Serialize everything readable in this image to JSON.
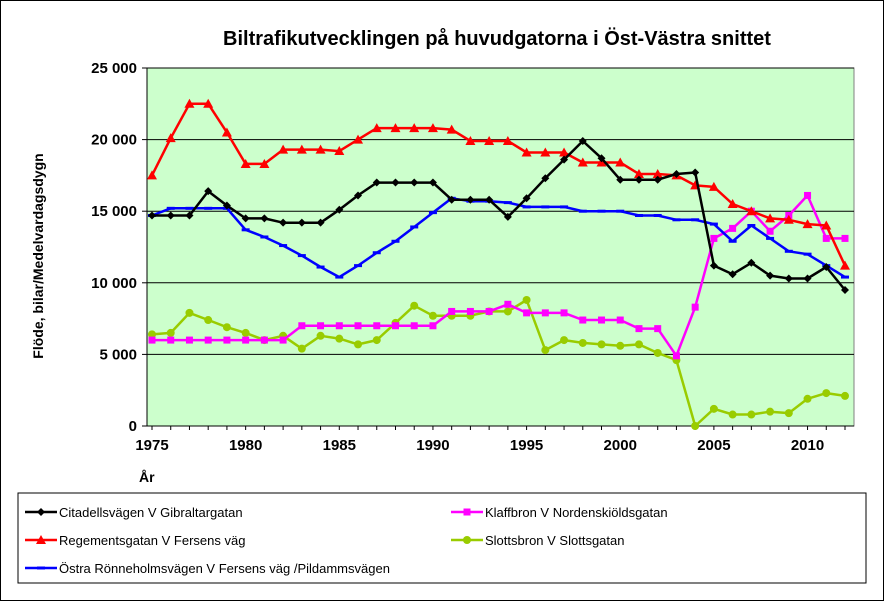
{
  "chart_data": {
    "type": "line",
    "title": "Biltrafikutvecklingen på huvudgatorna i Öst-Västra snittet",
    "xlabel": "År",
    "ylabel": "Flöde, bilar/Medelvardagsdygn",
    "xlim": [
      1975,
      2012
    ],
    "ylim": [
      0,
      25000
    ],
    "x_ticks": [
      1975,
      1980,
      1985,
      1990,
      1995,
      2000,
      2005,
      2010
    ],
    "y_ticks": [
      0,
      5000,
      10000,
      15000,
      20000,
      25000
    ],
    "x_tick_labels": [
      "1975",
      "1980",
      "1985",
      "1990",
      "1995",
      "2000",
      "2005",
      "2010"
    ],
    "y_tick_labels": [
      "0",
      "5 000",
      "10 000",
      "15 000",
      "20 000",
      "25 000"
    ],
    "grid": "horizontal",
    "plot_background": "#ccffcc",
    "legend_position": "bottom",
    "x": [
      1975,
      1976,
      1977,
      1978,
      1979,
      1980,
      1981,
      1982,
      1983,
      1984,
      1985,
      1986,
      1987,
      1988,
      1989,
      1990,
      1991,
      1992,
      1993,
      1994,
      1995,
      1996,
      1997,
      1998,
      1999,
      2000,
      2001,
      2002,
      2003,
      2004,
      2005,
      2006,
      2007,
      2008,
      2009,
      2010,
      2011,
      2012
    ],
    "series": [
      {
        "name": "Citadellsvägen  V Gibraltargatan",
        "color": "#000000",
        "marker": "diamond",
        "values": [
          14700,
          14700,
          14700,
          16400,
          15400,
          14500,
          14500,
          14200,
          14200,
          14200,
          15100,
          16100,
          17000,
          17000,
          17000,
          17000,
          15800,
          15800,
          15800,
          14600,
          15900,
          17300,
          18600,
          19900,
          18700,
          17200,
          17200,
          17200,
          17600,
          17700,
          11200,
          10600,
          11400,
          10500,
          10300,
          10300,
          11100,
          9500
        ]
      },
      {
        "name": "Regementsgatan V Fersens väg",
        "color": "#ff0000",
        "marker": "triangle",
        "values": [
          17500,
          20100,
          22500,
          22500,
          20500,
          18300,
          18300,
          19300,
          19300,
          19300,
          19200,
          20000,
          20800,
          20800,
          20800,
          20800,
          20700,
          19900,
          19900,
          19900,
          19100,
          19100,
          19100,
          18400,
          18400,
          18400,
          17600,
          17600,
          17500,
          16800,
          16700,
          15500,
          15000,
          14500,
          14400,
          14100,
          14000,
          11200
        ]
      },
      {
        "name": "Östra Rönneholmsvägen V Fersens väg /Pildammsvägen",
        "color": "#0000ff",
        "marker": "dash",
        "values": [
          14700,
          15200,
          15200,
          15200,
          15200,
          13700,
          13200,
          12600,
          11900,
          11100,
          10400,
          11200,
          12100,
          12900,
          13900,
          14900,
          15900,
          15700,
          15700,
          15600,
          15300,
          15300,
          15300,
          15000,
          15000,
          15000,
          14700,
          14700,
          14400,
          14400,
          14100,
          12900,
          14000,
          13100,
          12200,
          12000,
          11200,
          10400
        ]
      },
      {
        "name": "Klaffbron V Nordenskiöldsgatan",
        "color": "#ff00ff",
        "marker": "square",
        "values": [
          6000,
          6000,
          6000,
          6000,
          6000,
          6000,
          6000,
          6000,
          7000,
          7000,
          7000,
          7000,
          7000,
          7000,
          7000,
          7000,
          8000,
          8000,
          8000,
          8500,
          7900,
          7900,
          7900,
          7400,
          7400,
          7400,
          6800,
          6800,
          4900,
          8300,
          13100,
          13800,
          15000,
          13600,
          14700,
          16100,
          13100,
          13100
        ]
      },
      {
        "name": "Slottsbron V Slottsgatan",
        "color": "#99cc00",
        "marker": "circle",
        "values": [
          6400,
          6500,
          7900,
          7400,
          6900,
          6500,
          6000,
          6300,
          5400,
          6300,
          6100,
          5700,
          6000,
          7200,
          8400,
          7700,
          7700,
          7700,
          8000,
          8000,
          8800,
          5300,
          6000,
          5800,
          5700,
          5600,
          5700,
          5100,
          4600,
          0,
          1200,
          800,
          800,
          1000,
          900,
          1900,
          2300,
          2100
        ]
      }
    ],
    "legend_order": [
      0,
      3,
      1,
      4,
      2
    ]
  }
}
